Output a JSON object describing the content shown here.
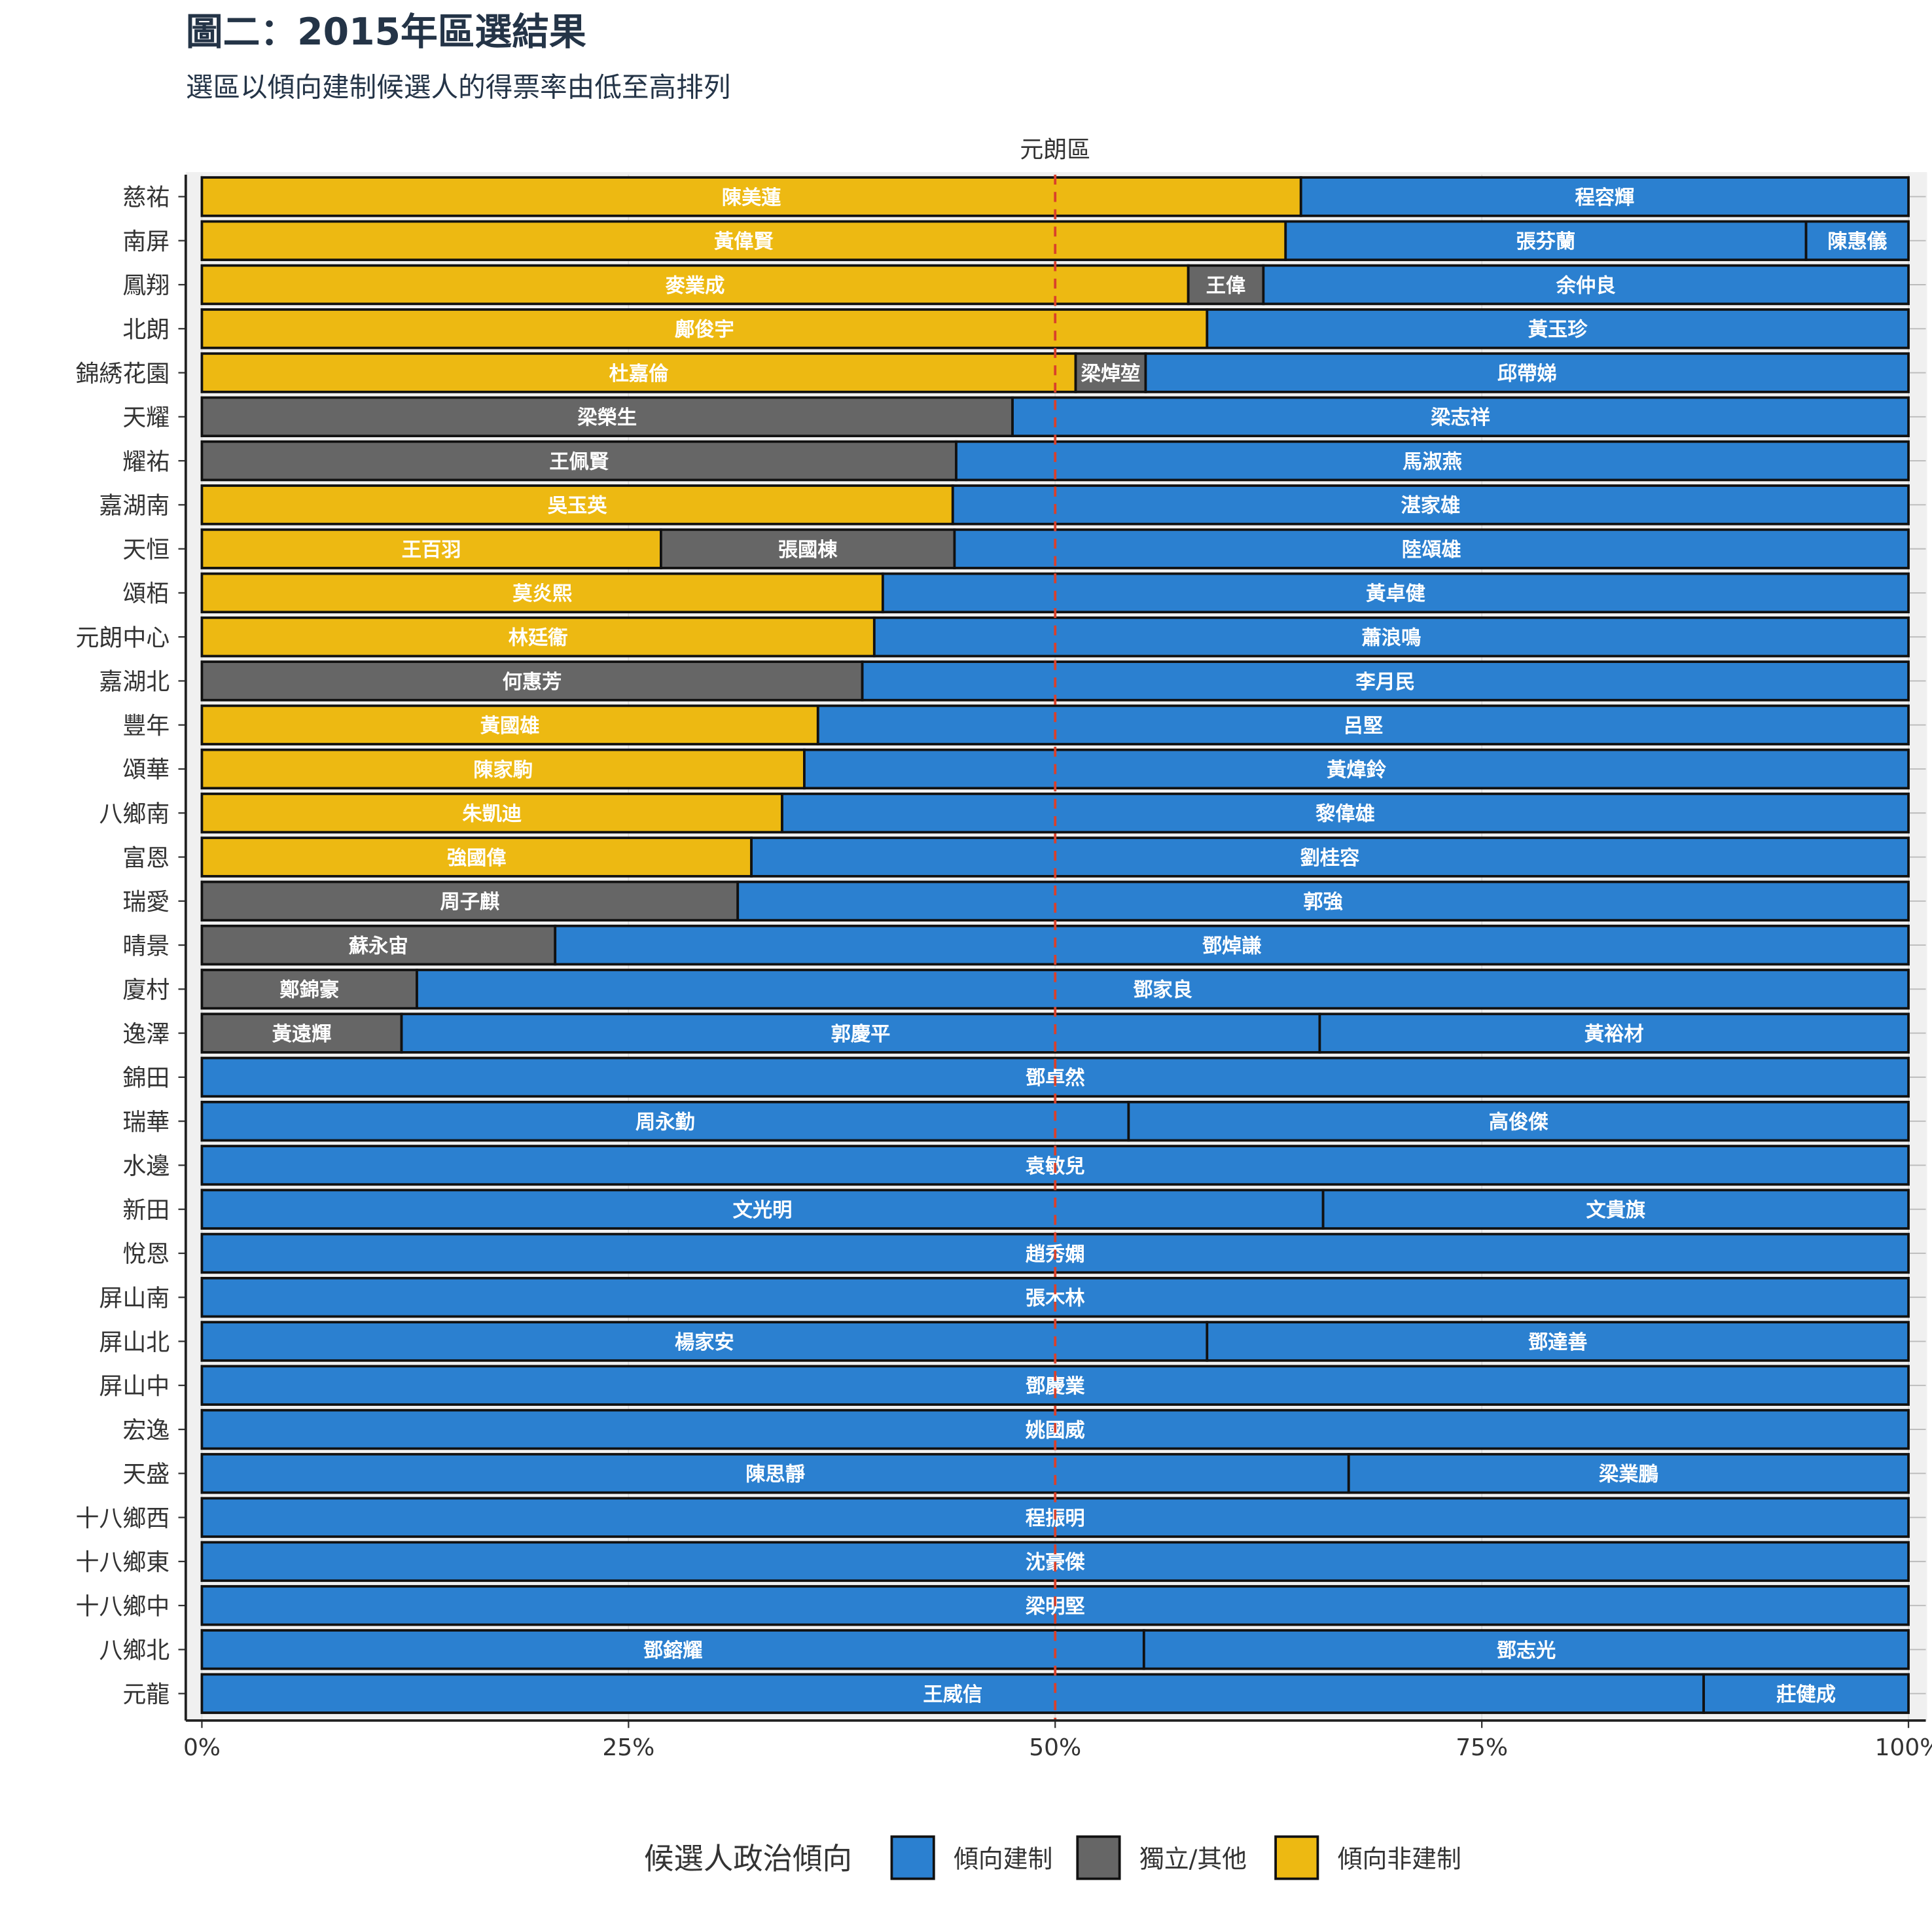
{
  "chart_data": {
    "type": "bar",
    "orientation": "horizontal-stacked-100",
    "title": "圖二：2015年區選結果",
    "subtitle": "選區以傾向建制候選人的得票率由低至高排列",
    "facet_label": "元朗區",
    "xlim": [
      0,
      100
    ],
    "x_ticks": [
      "0%",
      "25%",
      "50%",
      "75%",
      "100%"
    ],
    "reference_line": {
      "x": 50,
      "style": "dashed",
      "color": "#D9412B"
    },
    "legend": {
      "title": "候選人政治傾向",
      "placement": "bottom",
      "entries": [
        {
          "key": "pro",
          "label": "傾向建制",
          "color": "#2B80D0"
        },
        {
          "key": "ind",
          "label": "獨立/其他",
          "color": "#666666"
        },
        {
          "key": "dem",
          "label": "傾向非建制",
          "color": "#EDB912"
        }
      ]
    },
    "rows": [
      {
        "district": "慈祐",
        "candidates": [
          {
            "name": "陳美蓮",
            "camp": "dem",
            "share": 64.4
          },
          {
            "name": "程容輝",
            "camp": "pro",
            "share": 35.6
          }
        ]
      },
      {
        "district": "南屏",
        "candidates": [
          {
            "name": "黃偉賢",
            "camp": "dem",
            "share": 63.5
          },
          {
            "name": "張芬蘭",
            "camp": "pro",
            "share": 30.5
          },
          {
            "name": "陳惠儀",
            "camp": "pro",
            "share": 6.0
          }
        ]
      },
      {
        "district": "鳳翔",
        "candidates": [
          {
            "name": "麥業成",
            "camp": "dem",
            "share": 57.8
          },
          {
            "name": "王偉",
            "camp": "ind",
            "share": 4.4
          },
          {
            "name": "余仲良",
            "camp": "pro",
            "share": 37.8
          }
        ]
      },
      {
        "district": "北朗",
        "candidates": [
          {
            "name": "鄺俊宇",
            "camp": "dem",
            "share": 58.9
          },
          {
            "name": "黃玉珍",
            "camp": "pro",
            "share": 41.1
          }
        ]
      },
      {
        "district": "錦綉花園",
        "candidates": [
          {
            "name": "杜嘉倫",
            "camp": "dem",
            "share": 51.2
          },
          {
            "name": "梁焯堃",
            "camp": "ind",
            "share": 4.1
          },
          {
            "name": "邱帶娣",
            "camp": "pro",
            "share": 44.7
          }
        ]
      },
      {
        "district": "天耀",
        "candidates": [
          {
            "name": "梁榮生",
            "camp": "ind",
            "share": 47.5
          },
          {
            "name": "梁志祥",
            "camp": "pro",
            "share": 52.5
          }
        ]
      },
      {
        "district": "耀祐",
        "candidates": [
          {
            "name": "王佩賢",
            "camp": "ind",
            "share": 44.2
          },
          {
            "name": "馬淑燕",
            "camp": "pro",
            "share": 55.8
          }
        ]
      },
      {
        "district": "嘉湖南",
        "candidates": [
          {
            "name": "吳玉英",
            "camp": "dem",
            "share": 44.0
          },
          {
            "name": "湛家雄",
            "camp": "pro",
            "share": 56.0
          }
        ]
      },
      {
        "district": "天恒",
        "candidates": [
          {
            "name": "王百羽",
            "camp": "dem",
            "share": 26.9
          },
          {
            "name": "張國棟",
            "camp": "ind",
            "share": 17.2
          },
          {
            "name": "陸頌雄",
            "camp": "pro",
            "share": 55.9
          }
        ]
      },
      {
        "district": "頌栢",
        "candidates": [
          {
            "name": "莫炎熙",
            "camp": "dem",
            "share": 39.9
          },
          {
            "name": "黃卓健",
            "camp": "pro",
            "share": 60.1
          }
        ]
      },
      {
        "district": "元朗中心",
        "candidates": [
          {
            "name": "林廷衞",
            "camp": "dem",
            "share": 39.4
          },
          {
            "name": "蕭浪鳴",
            "camp": "pro",
            "share": 60.6
          }
        ]
      },
      {
        "district": "嘉湖北",
        "candidates": [
          {
            "name": "何惠芳",
            "camp": "ind",
            "share": 38.7
          },
          {
            "name": "李月民",
            "camp": "pro",
            "share": 61.3
          }
        ]
      },
      {
        "district": "豐年",
        "candidates": [
          {
            "name": "黃國雄",
            "camp": "dem",
            "share": 36.1
          },
          {
            "name": "呂堅",
            "camp": "pro",
            "share": 63.9
          }
        ]
      },
      {
        "district": "頌華",
        "candidates": [
          {
            "name": "陳家駒",
            "camp": "dem",
            "share": 35.3
          },
          {
            "name": "黃煒鈴",
            "camp": "pro",
            "share": 64.7
          }
        ]
      },
      {
        "district": "八鄉南",
        "candidates": [
          {
            "name": "朱凱迪",
            "camp": "dem",
            "share": 34.0
          },
          {
            "name": "黎偉雄",
            "camp": "pro",
            "share": 66.0
          }
        ]
      },
      {
        "district": "富恩",
        "candidates": [
          {
            "name": "強國偉",
            "camp": "dem",
            "share": 32.2
          },
          {
            "name": "劉桂容",
            "camp": "pro",
            "share": 67.8
          }
        ]
      },
      {
        "district": "瑞愛",
        "candidates": [
          {
            "name": "周子麒",
            "camp": "ind",
            "share": 31.4
          },
          {
            "name": "郭強",
            "camp": "pro",
            "share": 68.6
          }
        ]
      },
      {
        "district": "晴景",
        "candidates": [
          {
            "name": "蘇永宙",
            "camp": "ind",
            "share": 20.7
          },
          {
            "name": "鄧焯謙",
            "camp": "pro",
            "share": 79.3
          }
        ]
      },
      {
        "district": "廈村",
        "candidates": [
          {
            "name": "鄭錦豪",
            "camp": "ind",
            "share": 12.6
          },
          {
            "name": "鄧家良",
            "camp": "pro",
            "share": 87.4
          }
        ]
      },
      {
        "district": "逸澤",
        "candidates": [
          {
            "name": "黃遠輝",
            "camp": "ind",
            "share": 11.7
          },
          {
            "name": "郭慶平",
            "camp": "pro",
            "share": 53.8
          },
          {
            "name": "黃裕材",
            "camp": "pro",
            "share": 34.5
          }
        ]
      },
      {
        "district": "錦田",
        "candidates": [
          {
            "name": "鄧卓然",
            "camp": "pro",
            "share": 100
          }
        ]
      },
      {
        "district": "瑞華",
        "candidates": [
          {
            "name": "周永勤",
            "camp": "pro",
            "share": 54.3
          },
          {
            "name": "高俊傑",
            "camp": "pro",
            "share": 45.7
          }
        ]
      },
      {
        "district": "水邊",
        "candidates": [
          {
            "name": "袁敏兒",
            "camp": "pro",
            "share": 100
          }
        ]
      },
      {
        "district": "新田",
        "candidates": [
          {
            "name": "文光明",
            "camp": "pro",
            "share": 65.7
          },
          {
            "name": "文貴旗",
            "camp": "pro",
            "share": 34.3
          }
        ]
      },
      {
        "district": "悅恩",
        "candidates": [
          {
            "name": "趙秀嫻",
            "camp": "pro",
            "share": 100
          }
        ]
      },
      {
        "district": "屏山南",
        "candidates": [
          {
            "name": "張木林",
            "camp": "pro",
            "share": 100
          }
        ]
      },
      {
        "district": "屏山北",
        "candidates": [
          {
            "name": "楊家安",
            "camp": "pro",
            "share": 58.9
          },
          {
            "name": "鄧達善",
            "camp": "pro",
            "share": 41.1
          }
        ]
      },
      {
        "district": "屏山中",
        "candidates": [
          {
            "name": "鄧慶業",
            "camp": "pro",
            "share": 100
          }
        ]
      },
      {
        "district": "宏逸",
        "candidates": [
          {
            "name": "姚國威",
            "camp": "pro",
            "share": 100
          }
        ]
      },
      {
        "district": "天盛",
        "candidates": [
          {
            "name": "陳思靜",
            "camp": "pro",
            "share": 67.2
          },
          {
            "name": "梁業鵬",
            "camp": "pro",
            "share": 32.8
          }
        ]
      },
      {
        "district": "十八鄉西",
        "candidates": [
          {
            "name": "程振明",
            "camp": "pro",
            "share": 100
          }
        ]
      },
      {
        "district": "十八鄉東",
        "candidates": [
          {
            "name": "沈豪傑",
            "camp": "pro",
            "share": 100
          }
        ]
      },
      {
        "district": "十八鄉中",
        "candidates": [
          {
            "name": "梁明堅",
            "camp": "pro",
            "share": 100
          }
        ]
      },
      {
        "district": "八鄉北",
        "candidates": [
          {
            "name": "鄧鎔耀",
            "camp": "pro",
            "share": 55.2
          },
          {
            "name": "鄧志光",
            "camp": "pro",
            "share": 44.8
          }
        ]
      },
      {
        "district": "元龍",
        "candidates": [
          {
            "name": "王威信",
            "camp": "pro",
            "share": 88.0
          },
          {
            "name": "莊健成",
            "camp": "pro",
            "share": 12.0
          }
        ]
      }
    ]
  }
}
